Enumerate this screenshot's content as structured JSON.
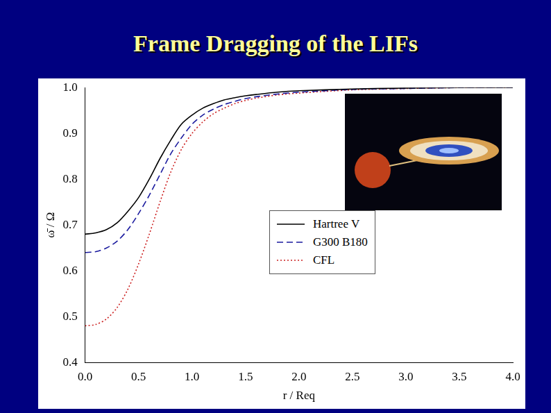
{
  "chart_data": {
    "type": "line",
    "title": "Frame Dragging of the LIFs",
    "x_label": "r / Req",
    "y_label": "ω̄ / Ω",
    "x": [
      0,
      0.1,
      0.2,
      0.3,
      0.4,
      0.5,
      0.6,
      0.7,
      0.8,
      0.9,
      1.0,
      1.1,
      1.2,
      1.3,
      1.4,
      1.5,
      1.6,
      1.8,
      2.0,
      2.5,
      3.0,
      3.5,
      4.0
    ],
    "series": [
      {
        "name": "Hartree V",
        "color": "#000000",
        "line_style": "solid",
        "values": [
          0.68,
          0.683,
          0.69,
          0.705,
          0.73,
          0.76,
          0.8,
          0.845,
          0.885,
          0.92,
          0.94,
          0.955,
          0.965,
          0.973,
          0.978,
          0.982,
          0.985,
          0.99,
          0.993,
          0.997,
          0.999,
          1.0,
          1.0
        ]
      },
      {
        "name": "G300 B180",
        "color": "#1a1a9e",
        "line_style": "dashed",
        "values": [
          0.64,
          0.642,
          0.65,
          0.665,
          0.69,
          0.725,
          0.765,
          0.81,
          0.855,
          0.89,
          0.92,
          0.94,
          0.953,
          0.963,
          0.97,
          0.976,
          0.98,
          0.986,
          0.99,
          0.996,
          0.998,
          1.0,
          1.0
        ]
      },
      {
        "name": "CFL",
        "color": "#cc2020",
        "line_style": "dotted",
        "values": [
          0.48,
          0.483,
          0.495,
          0.52,
          0.56,
          0.615,
          0.68,
          0.75,
          0.815,
          0.865,
          0.9,
          0.925,
          0.943,
          0.955,
          0.965,
          0.972,
          0.977,
          0.984,
          0.988,
          0.995,
          0.998,
          1.0,
          1.0
        ]
      }
    ],
    "xlim": [
      0,
      4
    ],
    "xticks": [
      {
        "value": 0,
        "label": "0.0"
      },
      0.5,
      {
        "value": 1,
        "label": "1.0"
      },
      1.5,
      {
        "value": 2,
        "label": "2.0"
      },
      2.5,
      {
        "value": 3,
        "label": "3.0"
      },
      3.5,
      {
        "value": 4,
        "label": "4.0"
      }
    ],
    "ylim": [
      0.4,
      1.0
    ],
    "yticks": [
      0.4,
      0.5,
      0.6,
      0.7,
      0.8,
      0.9,
      {
        "value": 1,
        "label": "1.0"
      }
    ],
    "grid": false,
    "legend": "center"
  }
}
